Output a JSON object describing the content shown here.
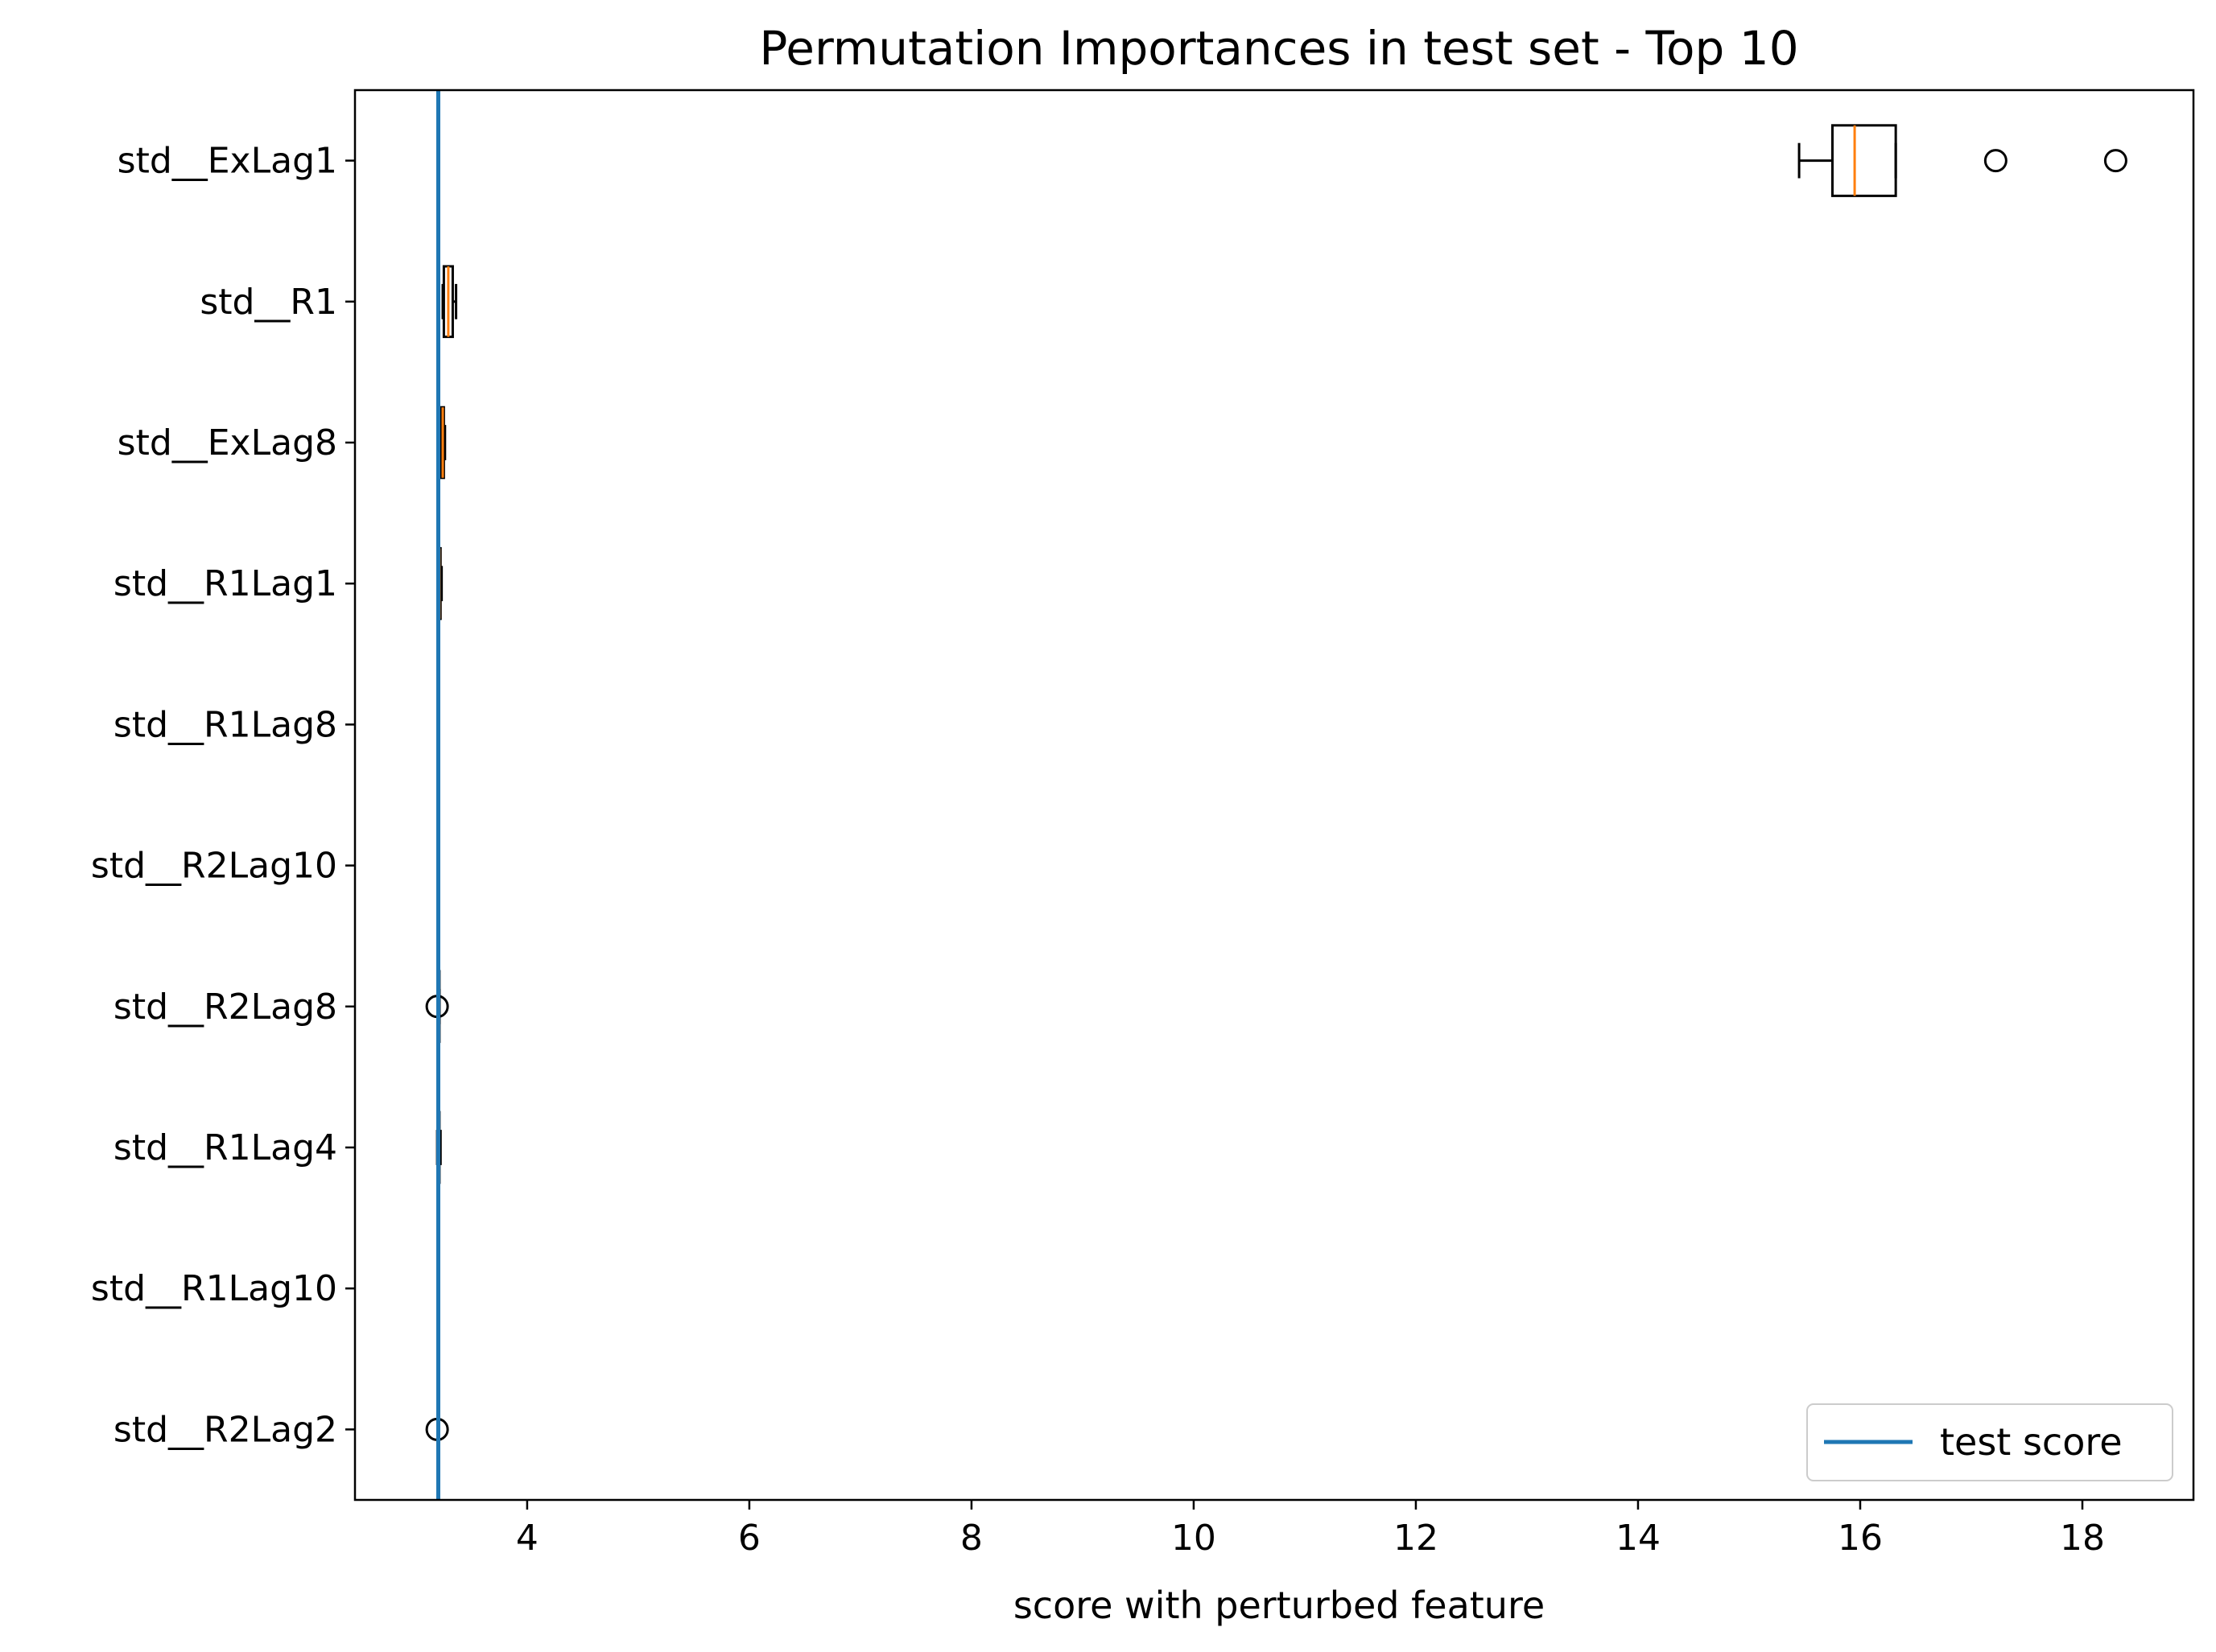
{
  "chart_data": {
    "type": "box",
    "orientation": "horizontal",
    "title": "Permutation Importances in test set - Top 10",
    "xlabel": "score with perturbed feature",
    "ylabel": "",
    "xlim": [
      2.45,
      19.0
    ],
    "xticks": [
      4,
      6,
      8,
      10,
      12,
      14,
      16,
      18
    ],
    "grid": false,
    "legend_position": "lower-right",
    "colors": {
      "box": "#000000",
      "median": "#ff7f0e",
      "reference_line": "#1f77b4"
    },
    "reference_line": {
      "label": "test score",
      "x": 3.2
    },
    "features": [
      {
        "name": "std__ExLag1",
        "whisker_low": 15.45,
        "q1": 15.75,
        "median": 15.95,
        "q3": 16.32,
        "whisker_high": 16.32,
        "outliers": [
          17.22,
          18.3
        ]
      },
      {
        "name": "std__R1",
        "whisker_low": 3.24,
        "q1": 3.25,
        "median": 3.29,
        "q3": 3.33,
        "whisker_high": 3.36,
        "outliers": []
      },
      {
        "name": "std__ExLag8",
        "whisker_low": 3.21,
        "q1": 3.22,
        "median": 3.24,
        "q3": 3.25,
        "whisker_high": 3.26,
        "outliers": []
      },
      {
        "name": "std__R1Lag1",
        "whisker_low": 3.2,
        "q1": 3.2,
        "median": 3.21,
        "q3": 3.22,
        "whisker_high": 3.23,
        "outliers": []
      },
      {
        "name": "std__R1Lag8",
        "whisker_low": 3.2,
        "q1": 3.2,
        "median": 3.2,
        "q3": 3.2,
        "whisker_high": 3.2,
        "outliers": []
      },
      {
        "name": "std__R2Lag10",
        "whisker_low": 3.2,
        "q1": 3.2,
        "median": 3.2,
        "q3": 3.2,
        "whisker_high": 3.2,
        "outliers": []
      },
      {
        "name": "std__R2Lag8",
        "whisker_low": 3.2,
        "q1": 3.2,
        "median": 3.2,
        "q3": 3.21,
        "whisker_high": 3.21,
        "outliers": [
          3.19
        ]
      },
      {
        "name": "std__R1Lag4",
        "whisker_low": 3.19,
        "q1": 3.2,
        "median": 3.2,
        "q3": 3.21,
        "whisker_high": 3.22,
        "outliers": []
      },
      {
        "name": "std__R1Lag10",
        "whisker_low": 3.2,
        "q1": 3.2,
        "median": 3.2,
        "q3": 3.2,
        "whisker_high": 3.2,
        "outliers": []
      },
      {
        "name": "std__R2Lag2",
        "whisker_low": 3.2,
        "q1": 3.2,
        "median": 3.2,
        "q3": 3.2,
        "whisker_high": 3.2,
        "outliers": [
          3.19
        ]
      }
    ]
  }
}
